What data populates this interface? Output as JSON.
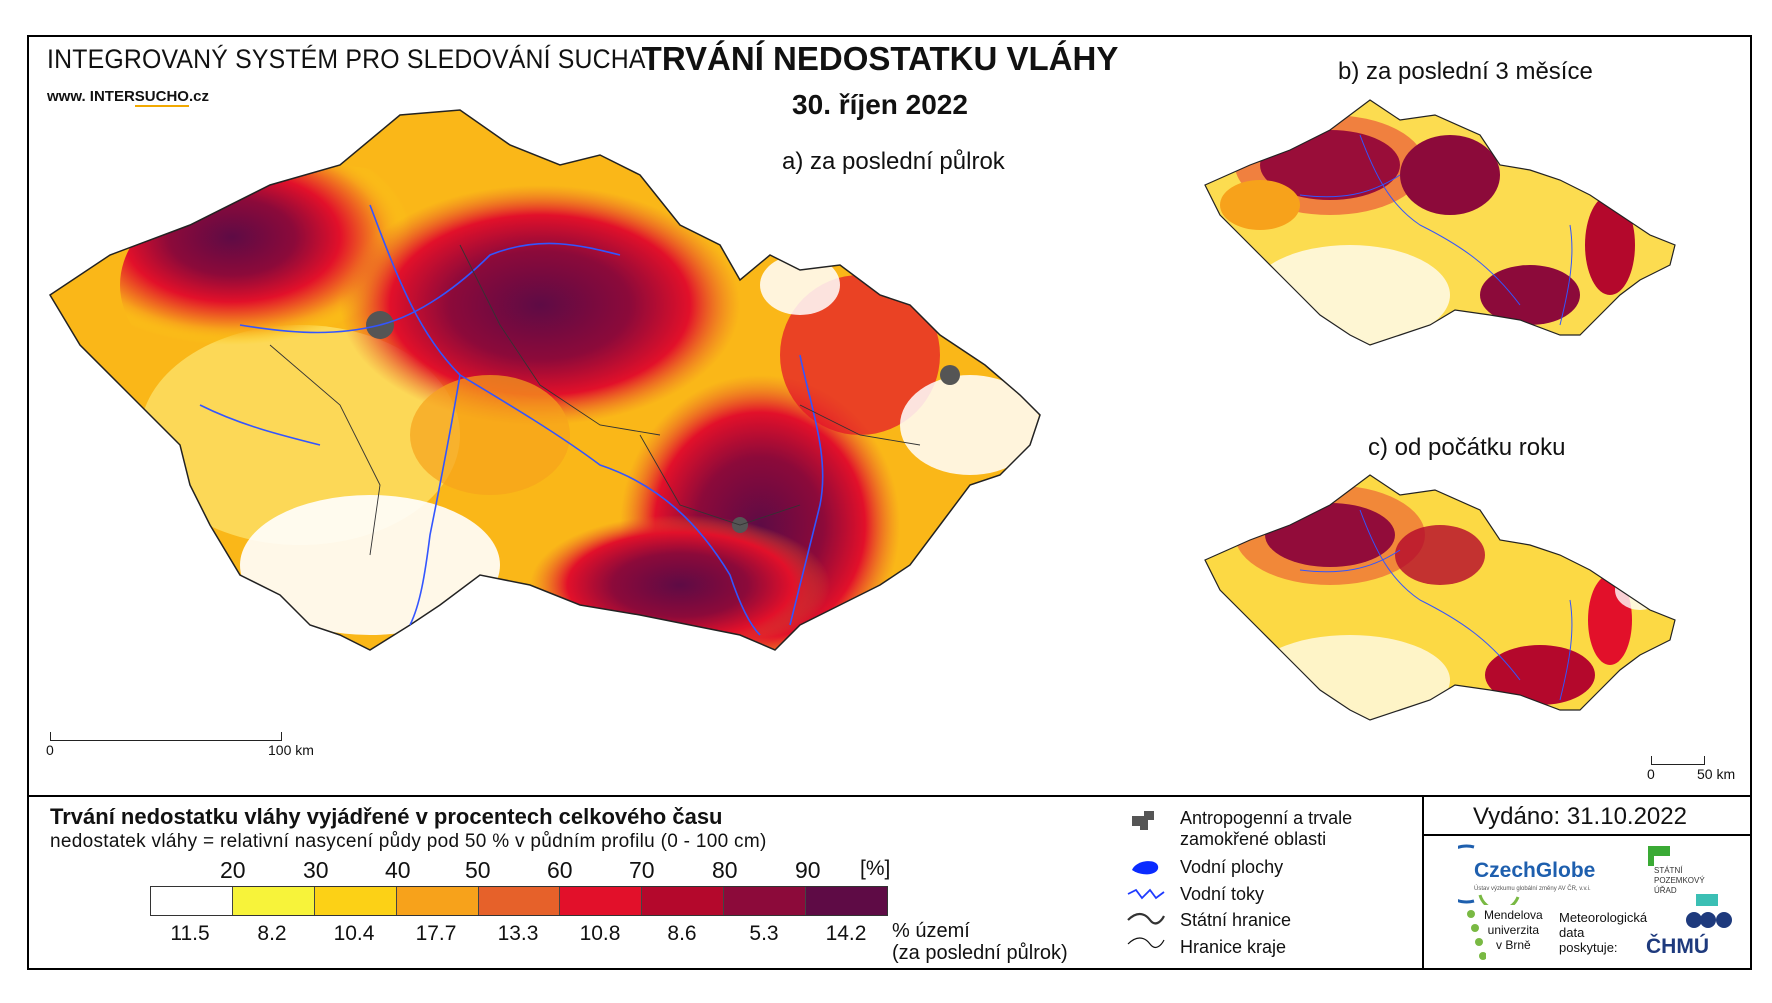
{
  "header": {
    "system_title": "INTEGROVANÝ SYSTÉM PRO SLEDOVÁNÍ SUCHA",
    "www_prefix": "www. INTER",
    "www_highlight": "SUCHO",
    "www_suffix": ".cz",
    "main_title": "TRVÁNÍ NEDOSTATKU VLÁHY",
    "main_date": "30. říjen 2022"
  },
  "panels": {
    "a": "a) za poslední půlrok",
    "b": "b) za poslední 3 měsíce",
    "c": "c) od počátku roku"
  },
  "scalebars": {
    "main_start": "0",
    "main_end": "100 km",
    "small_start": "0",
    "small_end": "50 km"
  },
  "legend": {
    "title": "Trvání nedostatku vláhy vyjádřené v procentech celkového času",
    "subtitle": "nedostatek vláhy = relativní nasycení půdy pod 50 % v půdním profilu (0 - 100 cm)",
    "thresholds": [
      "20",
      "30",
      "40",
      "50",
      "60",
      "70",
      "80",
      "90"
    ],
    "unit": "[%]",
    "colors": [
      "#ffffff",
      "#f7f33a",
      "#fcd116",
      "#f7a21b",
      "#e6612a",
      "#e2102a",
      "#b4082c",
      "#8c0a3a",
      "#5e0b45"
    ],
    "percentages": [
      "11.5",
      "8.2",
      "10.4",
      "17.7",
      "13.3",
      "10.8",
      "8.6",
      "5.3",
      "14.2"
    ],
    "pct_label_1": "% území",
    "pct_label_2": "(za poslední půlrok)"
  },
  "map_legend": {
    "anthropogenic_1": "Antropogenní a trvale",
    "anthropogenic_2": "zamokřené oblasti",
    "water_bodies": "Vodní plochy",
    "rivers": "Vodní toky",
    "state_border": "Státní hranice",
    "region_border": "Hranice kraje"
  },
  "issued": "Vydáno: 31.10.2022",
  "logos": {
    "czechglobe": "CzechGlobe",
    "czechglobe_sub": "Ústav výzkumu globální změny AV ČR, v.v.i.",
    "spu_1": "STÁTNÍ",
    "spu_2": "POZEMKOVÝ",
    "spu_3": "ÚŘAD",
    "mendel_1": "Mendelova",
    "mendel_2": "univerzita",
    "mendel_3": "v Brně",
    "meteo_1": "Meteorologická",
    "meteo_2": "data",
    "meteo_3": "poskytuje:",
    "chmu": "ČHMÚ"
  }
}
